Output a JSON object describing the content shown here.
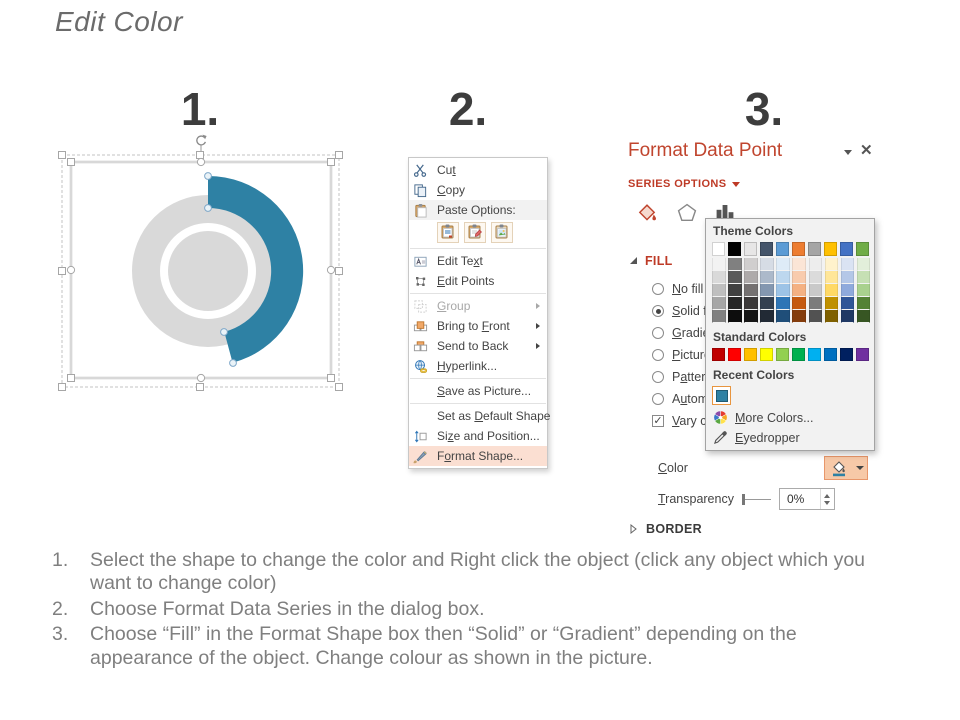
{
  "slide": {
    "title": "Edit Color",
    "step_numbers": [
      "1.",
      "2.",
      "3."
    ],
    "instructions": [
      {
        "num": "1.",
        "text": "Select the shape to change the color and Right click the object (click any object which you want to change color)"
      },
      {
        "num": "2.",
        "text": "Choose Format Data Series in the dialog box."
      },
      {
        "num": "3.",
        "text": "Choose “Fill” in the Format Shape box then “Solid” or “Gradient” depending on the appearance of the object. Change colour as shown in the picture."
      }
    ]
  },
  "shape_preview": {
    "arc_color": "#2E81A4",
    "donut_color": "#D9D9D9"
  },
  "context_menu": {
    "items": [
      {
        "type": "item",
        "icon": "scissors-icon",
        "label": "Cut",
        "u": 2
      },
      {
        "type": "item",
        "icon": "copy-icon",
        "label": "Copy",
        "u": 0
      },
      {
        "type": "item",
        "icon": "paste-icon",
        "label": "Paste Options:",
        "u": -1,
        "shaded": true
      },
      {
        "type": "paste-row",
        "icons": [
          "paste-keep-source-icon",
          "paste-merge-formatting-icon",
          "paste-picture-icon"
        ]
      },
      {
        "type": "sep"
      },
      {
        "type": "item",
        "icon": "edit-text-icon",
        "label": "Edit Text",
        "u": 7
      },
      {
        "type": "item",
        "icon": "edit-points-icon",
        "label": "Edit Points",
        "u": 0
      },
      {
        "type": "sep"
      },
      {
        "type": "item",
        "icon": "group-icon",
        "label": "Group",
        "u": 0,
        "disabled": true,
        "arrow": true
      },
      {
        "type": "item",
        "icon": "bring-front-icon",
        "label": "Bring to Front",
        "u": 9,
        "arrow": true
      },
      {
        "type": "item",
        "icon": "send-back-icon",
        "label": "Send to Back",
        "u": 12,
        "arrow": true
      },
      {
        "type": "item",
        "icon": "hyperlink-icon",
        "label": "Hyperlink...",
        "u": 0
      },
      {
        "type": "sep"
      },
      {
        "type": "item",
        "icon": "",
        "label": "Save as Picture...",
        "u": 0
      },
      {
        "type": "sep"
      },
      {
        "type": "item",
        "icon": "",
        "label": "Set as Default Shape",
        "u": 7
      },
      {
        "type": "item",
        "icon": "size-position-icon",
        "label": "Size and Position...",
        "u": 2
      },
      {
        "type": "item",
        "icon": "format-shape-icon",
        "label": "Format Shape...",
        "u": 1,
        "highlighted": true
      }
    ]
  },
  "format_panel": {
    "title": "Format Data Point",
    "section_label": "SERIES OPTIONS",
    "fill_heading": "FILL",
    "border_heading": "BORDER",
    "fill_options": [
      {
        "label": "No fill",
        "u": 0,
        "type": "radio",
        "checked": false
      },
      {
        "label": "Solid fill",
        "u": 0,
        "type": "radio",
        "checked": true
      },
      {
        "label": "Gradient fill",
        "u": 0,
        "type": "radio",
        "checked": false
      },
      {
        "label": "Picture or texture fill",
        "u": 0,
        "type": "radio",
        "checked": false
      },
      {
        "label": "Pattern fill",
        "u": 1,
        "type": "radio",
        "checked": false
      },
      {
        "label": "Automatic",
        "u": 1,
        "type": "radio",
        "checked": false
      },
      {
        "label": "Vary colors by point",
        "u": 0,
        "type": "checkbox",
        "checked": true
      }
    ],
    "color_label": {
      "label": "Color",
      "u": 0
    },
    "transparency_label": {
      "label": "Transparency",
      "u": 0
    },
    "transparency_value": "0%",
    "color_picker": {
      "theme_colors_label": "Theme Colors",
      "theme_colors": [
        "#FFFFFF",
        "#000000",
        "#E7E6E6",
        "#44546A",
        "#5B9BD5",
        "#ED7D31",
        "#A5A5A5",
        "#FFC000",
        "#4472C4",
        "#70AD47"
      ],
      "theme_variants": [
        [
          "#F2F2F2",
          "#D9D9D9",
          "#BFBFBF",
          "#A6A6A6",
          "#808080"
        ],
        [
          "#808080",
          "#595959",
          "#404040",
          "#262626",
          "#0D0D0D"
        ],
        [
          "#D0CECE",
          "#AEAAAA",
          "#757171",
          "#3B3838",
          "#161616"
        ],
        [
          "#D6DCE5",
          "#ACB9CA",
          "#8497B0",
          "#333F50",
          "#222A35"
        ],
        [
          "#DEEBF7",
          "#BDD7EE",
          "#9DC3E6",
          "#2E75B6",
          "#1F4E79"
        ],
        [
          "#FBE5D6",
          "#F8CBAD",
          "#F4B183",
          "#C55A11",
          "#843C0C"
        ],
        [
          "#EDEDED",
          "#DBDBDB",
          "#C9C9C9",
          "#7C7C7C",
          "#525252"
        ],
        [
          "#FFF2CC",
          "#FFE699",
          "#FFD966",
          "#BF9000",
          "#7F6000"
        ],
        [
          "#DAE3F3",
          "#B4C7E7",
          "#8FAADC",
          "#2F5597",
          "#1F3864"
        ],
        [
          "#E2EFDA",
          "#C6E0B4",
          "#A9D18E",
          "#548235",
          "#375623"
        ]
      ],
      "standard_colors_label": "Standard Colors",
      "standard_colors": [
        "#C00000",
        "#FF0000",
        "#FFC000",
        "#FFFF00",
        "#92D050",
        "#00B050",
        "#00B0F0",
        "#0070C0",
        "#002060",
        "#7030A0"
      ],
      "recent_colors_label": "Recent Colors",
      "recent_colors": [
        "#2E81A4"
      ],
      "more_colors": {
        "label": "More Colors...",
        "u": 0
      },
      "eyedropper": {
        "label": "Eyedropper",
        "u": 0
      }
    }
  }
}
